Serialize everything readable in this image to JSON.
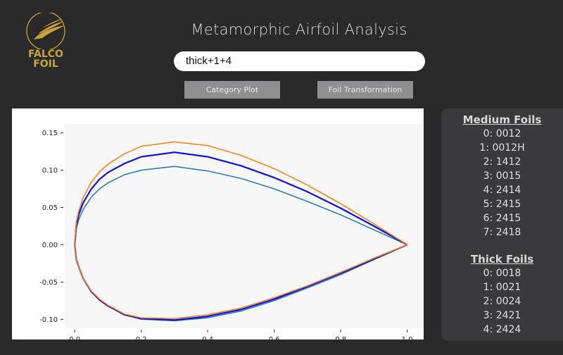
{
  "logo": {
    "line1": "FALCO",
    "line2": "FOIL",
    "color": "#c9a23a"
  },
  "title": "Metamorphic Airfoil Analysis",
  "search": {
    "value": "thick+1+4"
  },
  "buttons": {
    "category_plot": "Category Plot",
    "foil_transformation": "Foil Transformation"
  },
  "sidebar": {
    "groups": [
      {
        "title": "Medium Foils",
        "items": [
          "0: 0012",
          "1: 0012H",
          "2: 1412",
          "3: 0015",
          "4: 2414",
          "5: 2415",
          "6: 2415",
          "7: 2418"
        ]
      },
      {
        "title": "Thick Foils",
        "items": [
          "0: 0018",
          "1: 0021",
          "2: 0024",
          "3: 2421",
          "4: 2424"
        ]
      }
    ]
  },
  "chart_data": {
    "type": "line",
    "xlim": [
      -0.03,
      1.06
    ],
    "ylim": [
      -0.112,
      0.162
    ],
    "xticks": [
      "0.0",
      "0.2",
      "0.4",
      "0.6",
      "0.8",
      "1.0"
    ],
    "yticks": [
      "0.15",
      "0.10",
      "0.05",
      "0.00",
      "-0.05",
      "-0.10"
    ],
    "grid": false,
    "series": [
      {
        "color": "#1f77b4",
        "width": 1.5,
        "x": [
          1.0,
          0.9,
          0.8,
          0.7,
          0.6,
          0.5,
          0.4,
          0.3,
          0.2,
          0.15,
          0.1,
          0.075,
          0.05,
          0.025,
          0.0125,
          0.005,
          0.0,
          0.005,
          0.0125,
          0.025,
          0.05,
          0.075,
          0.1,
          0.15,
          0.2,
          0.3,
          0.4,
          0.5,
          0.6,
          0.7,
          0.8,
          0.9,
          1.0
        ],
        "y": [
          0.0,
          0.02,
          0.04,
          0.058,
          0.075,
          0.089,
          0.099,
          0.105,
          0.1,
          0.094,
          0.083,
          0.075,
          0.064,
          0.047,
          0.034,
          0.022,
          0.0,
          -0.02,
          -0.03,
          -0.045,
          -0.063,
          -0.074,
          -0.082,
          -0.094,
          -0.1,
          -0.102,
          -0.098,
          -0.089,
          -0.075,
          -0.058,
          -0.04,
          -0.02,
          0.0
        ]
      },
      {
        "color": "#1010dd",
        "width": 2.2,
        "x": [
          1.0,
          0.9,
          0.8,
          0.7,
          0.6,
          0.5,
          0.4,
          0.3,
          0.2,
          0.15,
          0.1,
          0.075,
          0.05,
          0.025,
          0.0125,
          0.005,
          0.0,
          0.005,
          0.0125,
          0.025,
          0.05,
          0.075,
          0.1,
          0.15,
          0.2,
          0.3,
          0.4,
          0.5,
          0.6,
          0.7,
          0.8,
          0.9,
          1.0
        ],
        "y": [
          0.0,
          0.025,
          0.049,
          0.071,
          0.09,
          0.106,
          0.118,
          0.124,
          0.118,
          0.109,
          0.097,
          0.088,
          0.075,
          0.056,
          0.041,
          0.027,
          0.0,
          -0.02,
          -0.03,
          -0.045,
          -0.063,
          -0.074,
          -0.082,
          -0.094,
          -0.099,
          -0.101,
          -0.096,
          -0.087,
          -0.073,
          -0.056,
          -0.038,
          -0.019,
          0.0
        ]
      },
      {
        "color": "#ff7f0e",
        "width": 1.5,
        "x": [
          1.0,
          0.9,
          0.8,
          0.7,
          0.6,
          0.5,
          0.4,
          0.3,
          0.2,
          0.15,
          0.1,
          0.075,
          0.05,
          0.025,
          0.0125,
          0.005,
          0.0,
          0.005,
          0.0125,
          0.025,
          0.05,
          0.075,
          0.1,
          0.15,
          0.2,
          0.3,
          0.4,
          0.5,
          0.6,
          0.7,
          0.8,
          0.9,
          1.0
        ],
        "y": [
          0.0,
          0.028,
          0.055,
          0.08,
          0.102,
          0.12,
          0.133,
          0.138,
          0.132,
          0.122,
          0.108,
          0.098,
          0.084,
          0.063,
          0.046,
          0.031,
          0.0,
          -0.02,
          -0.03,
          -0.045,
          -0.062,
          -0.073,
          -0.081,
          -0.093,
          -0.098,
          -0.099,
          -0.094,
          -0.085,
          -0.071,
          -0.055,
          -0.037,
          -0.018,
          0.0
        ]
      }
    ]
  }
}
